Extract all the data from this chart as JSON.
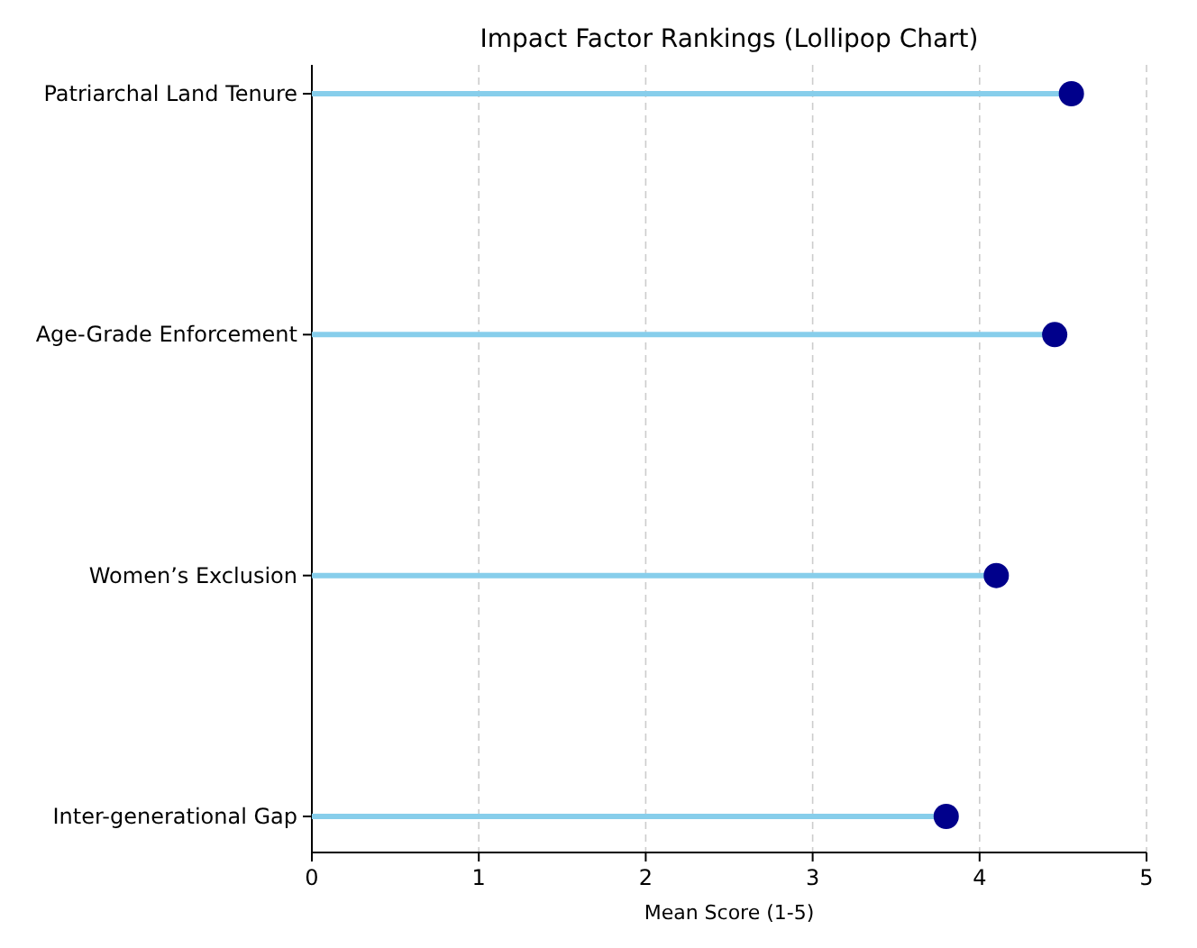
{
  "chart_data": {
    "type": "lollipop",
    "orientation": "horizontal",
    "title": "Impact Factor Rankings (Lollipop Chart)",
    "xlabel": "Mean Score (1-5)",
    "categories": [
      "Patriarchal Land Tenure",
      "Age-Grade Enforcement",
      "Women’s Exclusion",
      "Inter-generational Gap"
    ],
    "values": [
      4.55,
      4.45,
      4.1,
      3.8
    ],
    "color": "#00008b",
    "xlim": [
      0,
      5
    ],
    "xticks": [
      0,
      1,
      2,
      3,
      4,
      5
    ],
    "grid": "x",
    "marker": "circle"
  }
}
